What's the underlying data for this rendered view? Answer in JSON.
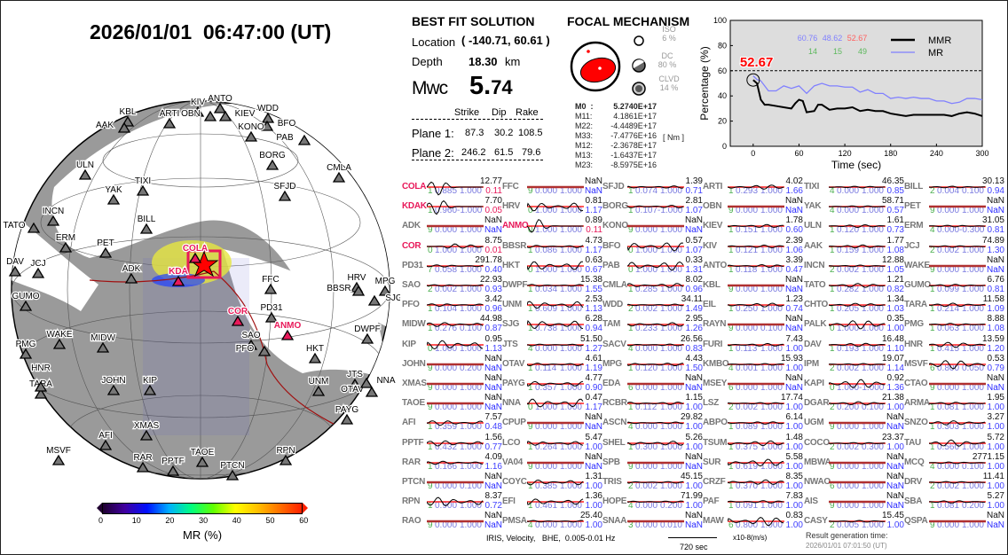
{
  "title": "2026/01/01  06:47:00 (UT)",
  "solution": {
    "heading": "BEST FIT SOLUTION",
    "location_label": "Location",
    "location": "( -140.71,  60.61 )",
    "depth_label": "Depth",
    "depth": "18.30",
    "depth_unit": "km",
    "mag_label": "Mwc",
    "mag_int": "5.",
    "mag_dec": "74",
    "cols": [
      "Strike",
      "Dip",
      "Rake"
    ],
    "planes": [
      {
        "label": "Plane 1:",
        "strike": "87.3",
        "dip": "30.2",
        "rake": "108.5"
      },
      {
        "label": "Plane 2:",
        "strike": "246.2",
        "dip": "61.5",
        "rake": "79.6"
      }
    ]
  },
  "focal": {
    "heading": "FOCAL MECHANISM",
    "iso_label": "ISO",
    "iso": "6  %",
    "dc_label": "DC",
    "dc": "80 %",
    "clvd_label": "CLVD",
    "clvd": "14 %",
    "unit": "[ Nm ]",
    "tensor": [
      {
        "k": "M0  :",
        "v": "5.2740E+17"
      },
      {
        "k": "M11:",
        "v": "4.1861E+17"
      },
      {
        "k": "M22:",
        "v": "-4.4489E+17"
      },
      {
        "k": "M33:",
        "v": "-7.4776E+16"
      },
      {
        "k": "M12:",
        "v": "-2.3678E+17"
      },
      {
        "k": "M13:",
        "v": "-1.6437E+17"
      },
      {
        "k": "M23:",
        "v": "-8.5975E+16"
      }
    ]
  },
  "chart_data": {
    "type": "line",
    "xlabel": "Time (sec)",
    "ylabel": "Percentage (%)",
    "xlim": [
      -30,
      300
    ],
    "ylim": [
      0,
      100
    ],
    "xticks": [
      0,
      60,
      120,
      180,
      240,
      300
    ],
    "yticks": [
      0,
      20,
      40,
      60,
      80,
      100
    ],
    "hline": 60,
    "legend": "top-right",
    "highlight": "52.67",
    "stats_top": [
      "60.76",
      "48.62",
      "52.67"
    ],
    "stats_bottom": [
      "14",
      "15",
      "49"
    ],
    "series": [
      {
        "name": "MMR",
        "color": "#000000",
        "x": [
          0,
          5,
          10,
          15,
          20,
          30,
          40,
          50,
          55,
          60,
          65,
          70,
          80,
          85,
          90,
          100,
          110,
          120,
          130,
          140,
          150,
          160,
          170,
          180,
          190,
          200,
          210,
          220,
          230,
          240,
          250,
          260,
          270,
          280,
          290,
          300
        ],
        "y": [
          52.67,
          50,
          37,
          33,
          33,
          32,
          31,
          30,
          34,
          37,
          36,
          27,
          28,
          33,
          33,
          29,
          30,
          30,
          31,
          28,
          29,
          28,
          28,
          26,
          25,
          24,
          25,
          25,
          25,
          25,
          25,
          24,
          26,
          27,
          26,
          24
        ]
      },
      {
        "name": "MR",
        "color": "#8080ff",
        "x": [
          0,
          5,
          10,
          20,
          30,
          40,
          50,
          60,
          70,
          80,
          90,
          100,
          110,
          120,
          130,
          140,
          150,
          160,
          170,
          180,
          190,
          200,
          210,
          220,
          230,
          240,
          250,
          260,
          270,
          280,
          290,
          300
        ],
        "y": [
          56,
          53,
          52,
          44,
          44,
          48,
          46,
          48,
          42,
          48,
          50,
          48,
          48,
          47,
          47,
          43,
          45,
          42,
          42,
          38,
          39,
          38,
          39,
          38,
          38,
          36,
          36,
          34,
          35,
          38,
          38,
          37
        ]
      }
    ]
  },
  "map": {
    "colorbar_label": "MR (%)",
    "colorbar_ticks": [
      "0",
      "10",
      "20",
      "30",
      "40",
      "50",
      "60"
    ],
    "stations": [
      {
        "name": "KIV"
      },
      {
        "name": "ANTO"
      },
      {
        "name": "OBN"
      },
      {
        "name": "KIEV"
      },
      {
        "name": "WDD"
      },
      {
        "name": "BFO"
      },
      {
        "name": "KONO"
      },
      {
        "name": "KBL"
      },
      {
        "name": "AAK"
      },
      {
        "name": "ARTI"
      },
      {
        "name": "PAB"
      },
      {
        "name": "BORG"
      },
      {
        "name": "ULN"
      },
      {
        "name": "CMLA"
      },
      {
        "name": "TIXI"
      },
      {
        "name": "YAK"
      },
      {
        "name": "SFJD"
      },
      {
        "name": "INCN"
      },
      {
        "name": "TATO"
      },
      {
        "name": "BILL"
      },
      {
        "name": "ERM"
      },
      {
        "name": "PET"
      },
      {
        "name": "DAV"
      },
      {
        "name": "JCJ"
      },
      {
        "name": "ADK"
      },
      {
        "name": "FFC"
      },
      {
        "name": "HRV"
      },
      {
        "name": "BBSR"
      },
      {
        "name": "GUMO"
      },
      {
        "name": "MPG"
      },
      {
        "name": "SJG"
      },
      {
        "name": "PD31"
      },
      {
        "name": "COR",
        "hl": true
      },
      {
        "name": "SAO"
      },
      {
        "name": "PFO"
      },
      {
        "name": "ANMO",
        "hl": true
      },
      {
        "name": "DWPF"
      },
      {
        "name": "PMG"
      },
      {
        "name": "WAKE"
      },
      {
        "name": "MIDW"
      },
      {
        "name": "HKT"
      },
      {
        "name": "TARA"
      },
      {
        "name": "HNR"
      },
      {
        "name": "JOHN"
      },
      {
        "name": "KIP"
      },
      {
        "name": "UNM"
      },
      {
        "name": "JTS"
      },
      {
        "name": "OTAV"
      },
      {
        "name": "NNA"
      },
      {
        "name": "PAYG"
      },
      {
        "name": "XMAS"
      },
      {
        "name": "MSVF"
      },
      {
        "name": "AFI"
      },
      {
        "name": "RAR"
      },
      {
        "name": "PPTF"
      },
      {
        "name": "TAOE"
      },
      {
        "name": "PTCN"
      },
      {
        "name": "RPN"
      },
      {
        "name": "COLA",
        "hl": true
      },
      {
        "name": "KDA",
        "hl": true
      }
    ]
  },
  "footer": {
    "info": "IRIS, Velocity,   BHE,  0.005-0.01 Hz",
    "scale": "720 sec",
    "units": "x10-8(m/s)",
    "gen_label": "Result generation time:",
    "gen_time": "2026/01/01 07:01:50 (UT)"
  },
  "colors": {
    "highlight": "#e8195a",
    "blue": "#4040ff",
    "green": "#4caf50"
  },
  "stations": [
    [
      [
        "COLA",
        "12.77",
        "1",
        "0.885",
        "1.000",
        "0.11",
        true
      ],
      [
        "KDAK",
        "7.70",
        "1",
        "0.960",
        "-1.000",
        "0.05",
        true
      ],
      [
        "ADK",
        "NaN",
        "9",
        "0.000",
        "1.000",
        "NaN"
      ],
      [
        "COR",
        "8.75",
        "0",
        "1.000",
        "1.000",
        "0.01",
        true
      ],
      [
        "PD31",
        "291.78",
        "7",
        "0.058",
        "1.000",
        "0.40"
      ],
      [
        "SAO",
        "22.93",
        "2",
        "0.002",
        "1.000",
        "0.93"
      ],
      [
        "PFO",
        "3.42",
        "1",
        "0.104",
        "1.000",
        "0.96"
      ],
      [
        "MIDW",
        "44.98",
        "1",
        "0.276",
        "0.100",
        "0.87"
      ],
      [
        "KIP",
        "0.95",
        "0",
        "1.000",
        "1.000",
        "1.13"
      ],
      [
        "JOHN",
        "NaN",
        "9",
        "0.000",
        "0.200",
        "NaN"
      ],
      [
        "XMAS",
        "NaN",
        "9",
        "0.000",
        "1.000",
        "NaN"
      ],
      [
        "TAOE",
        "NaN",
        "9",
        "0.000",
        "1.000",
        "NaN"
      ],
      [
        "AFI",
        "7.57",
        "1",
        "0.359",
        "1.000",
        "0.48"
      ],
      [
        "PPTF",
        "1.56",
        "1",
        "0.432",
        "1.000",
        "0.77"
      ],
      [
        "RAR",
        "4.09",
        "1",
        "0.166",
        "1.000",
        "1.16"
      ],
      [
        "PTCN",
        "NaN",
        "9",
        "0.000",
        "0.100",
        "NaN"
      ],
      [
        "RPN",
        "8.37",
        "1",
        "0.900",
        "1.000",
        "0.72"
      ],
      [
        "RAO",
        "NaN",
        "9",
        "0.000",
        "1.000",
        "NaN"
      ]
    ],
    [
      [
        "FFC",
        "NaN",
        "9",
        "0.000",
        "1.000",
        "NaN"
      ],
      [
        "HRV",
        "0.81",
        "0",
        "1.000",
        "1.000",
        "1.17"
      ],
      [
        "ANMO",
        "0.89",
        "0",
        "1.000",
        "1.000",
        "0.11",
        true
      ],
      [
        "BBSR",
        "4.73",
        "1",
        "0.086",
        "1.000",
        "1.17"
      ],
      [
        "HKT",
        "0.63",
        "0",
        "1.000",
        "1.000",
        "0.67"
      ],
      [
        "DWPF",
        "15.38",
        "1",
        "0.034",
        "1.000",
        "1.55"
      ],
      [
        "UNM",
        "2.53",
        "1",
        "0.609",
        "1.000",
        "1.13"
      ],
      [
        "SJG",
        "6.28",
        "1",
        "0.738",
        "1.000",
        "0.94"
      ],
      [
        "JTS",
        "51.50",
        "4",
        "0.000",
        "1.000",
        "1.27"
      ],
      [
        "OTAV",
        "4.61",
        "1",
        "0.114",
        "1.000",
        "1.19"
      ],
      [
        "PAYG",
        "4.77",
        "1",
        "0.357",
        "1.000",
        "0.90"
      ],
      [
        "NNA",
        "0.47",
        "0",
        "1.000",
        "1.000",
        "1.17"
      ],
      [
        "CPUP",
        "NaN",
        "9",
        "0.000",
        "1.000",
        "NaN"
      ],
      [
        "LCO",
        "5.47",
        "1",
        "0.264",
        "1.000",
        "1.00"
      ],
      [
        "VA04",
        "NaN",
        "9",
        "0.000",
        "1.000",
        "NaN"
      ],
      [
        "COYC",
        "1.31",
        "1",
        "0.385",
        "1.000",
        "1.00"
      ],
      [
        "EFI",
        "1.36",
        "1",
        "0.461",
        "1.000",
        "1.00"
      ],
      [
        "PMSA",
        "25.40",
        "4",
        "0.000",
        "1.000",
        "1.00"
      ]
    ],
    [
      [
        "SFJD",
        "1.39",
        "1",
        "0.074",
        "1.000",
        "0.71"
      ],
      [
        "BORG",
        "2.81",
        "1",
        "0.107",
        "-1.000",
        "1.07"
      ],
      [
        "KONO",
        "NaN",
        "9",
        "0.000",
        "1.000",
        "NaN"
      ],
      [
        "BFO",
        "0.57",
        "0",
        "1.000",
        "1.000",
        "1.07"
      ],
      [
        "PAB",
        "0.33",
        "0",
        "1.000",
        "1.000",
        "1.31"
      ],
      [
        "CMLA",
        "8.02",
        "1",
        "0.285",
        "1.000",
        "0.96"
      ],
      [
        "WDD",
        "34.11",
        "2",
        "0.002",
        "1.000",
        "1.49"
      ],
      [
        "TAM",
        "2.95",
        "1",
        "0.233",
        "1.000",
        "1.26"
      ],
      [
        "SACV",
        "26.56",
        "4",
        "0.000",
        "1.000",
        "0.83"
      ],
      [
        "MPG",
        "4.43",
        "1",
        "0.120",
        "1.000",
        "1.50"
      ],
      [
        "EDA",
        "NaN",
        "6",
        "0.000",
        "1.000",
        "NaN"
      ],
      [
        "RCBR",
        "1.15",
        "1",
        "0.112",
        "1.000",
        "1.00"
      ],
      [
        "ASCN",
        "29.82",
        "4",
        "0.000",
        "1.000",
        "1.00"
      ],
      [
        "SHEL",
        "5.26",
        "1",
        "0.300",
        "1.000",
        "1.00"
      ],
      [
        "SPB",
        "NaN",
        "9",
        "0.000",
        "1.000",
        "NaN"
      ],
      [
        "TRIS",
        "45.15",
        "2",
        "0.002",
        "1.000",
        "1.00"
      ],
      [
        "HOPE",
        "71.99",
        "4",
        "0.000",
        "0.200",
        "1.00"
      ],
      [
        "SNAA",
        "NaN",
        "3",
        "0.000",
        "0.010",
        "NaN"
      ]
    ],
    [
      [
        "ARTI",
        "4.02",
        "1",
        "0.293",
        "1.000",
        "1.66"
      ],
      [
        "OBN",
        "NaN",
        "9",
        "0.000",
        "1.000",
        "NaN"
      ],
      [
        "KIEV",
        "1.78",
        "1",
        "0.151",
        "1.000",
        "0.60"
      ],
      [
        "KIV",
        "2.39",
        "1",
        "0.121",
        "1.000",
        "1.06"
      ],
      [
        "ANTO",
        "3.39",
        "1",
        "0.118",
        "1.000",
        "0.47"
      ],
      [
        "KBL",
        "NaN",
        "9",
        "0.000",
        "1.000",
        "NaN"
      ],
      [
        "EIL",
        "1.23",
        "1",
        "0.250",
        "1.000",
        "0.74"
      ],
      [
        "RAYN",
        "NaN",
        "9",
        "0.000",
        "0.100",
        "NaN"
      ],
      [
        "FURI",
        "7.43",
        "1",
        "0.113",
        "1.000",
        "1.00"
      ],
      [
        "KMBO",
        "15.93",
        "4",
        "0.001",
        "1.000",
        "1.00"
      ],
      [
        "MSEY",
        "NaN",
        "6",
        "0.000",
        "1.000",
        "NaN"
      ],
      [
        "LSZ",
        "17.74",
        "2",
        "0.002",
        "1.000",
        "1.00"
      ],
      [
        "ABPO",
        "6.14",
        "1",
        "0.089",
        "1.000",
        "1.00"
      ],
      [
        "TSUM",
        "1.48",
        "1",
        "0.375",
        "1.000",
        "1.00"
      ],
      [
        "SUR",
        "5.58",
        "1",
        "0.619",
        "1.000",
        "1.00"
      ],
      [
        "CRZF",
        "8.35",
        "1",
        "0.370",
        "1.000",
        "1.00"
      ],
      [
        "PAF",
        "7.83",
        "1",
        "0.091",
        "1.000",
        "1.00"
      ],
      [
        "MAW",
        "0.83",
        "6",
        "0.800",
        "1.000",
        "1.00"
      ]
    ],
    [
      [
        "TIXI",
        "46.35",
        "4",
        "0.000",
        "1.000",
        "0.85"
      ],
      [
        "YAK",
        "58.71",
        "4",
        "0.000",
        "1.000",
        "0.57"
      ],
      [
        "ULN",
        "1.61",
        "1",
        "0.120",
        "1.000",
        "0.73"
      ],
      [
        "AAK",
        "1.77",
        "1",
        "0.159",
        "1.000",
        "1.08"
      ],
      [
        "INCN",
        "12.88",
        "2",
        "0.002",
        "1.000",
        "1.05"
      ],
      [
        "TATO",
        "1.21",
        "1",
        "0.282",
        "1.000",
        "0.82"
      ],
      [
        "CHTO",
        "1.34",
        "1",
        "0.205",
        "1.000",
        "1.03"
      ],
      [
        "PALK",
        "0.35",
        "0",
        "1.000",
        "1.000",
        "1.00"
      ],
      [
        "DAV",
        "16.48",
        "1",
        "0.193",
        "1.000",
        "1.10"
      ],
      [
        "IPM",
        "19.07",
        "2",
        "0.002",
        "1.000",
        "1.14"
      ],
      [
        "KAPI",
        "0.92",
        "0",
        "1.000",
        "-1.000",
        "1.36"
      ],
      [
        "DGAR",
        "21.38",
        "2",
        "0.200",
        "0.100",
        "1.00"
      ],
      [
        "UGM",
        "NaN",
        "9",
        "0.000",
        "1.000",
        "NaN"
      ],
      [
        "COCO",
        "23.37",
        "2",
        "0.002",
        "0.300",
        "1.00"
      ],
      [
        "MBWA",
        "NaN",
        "9",
        "0.000",
        "1.000",
        "NaN"
      ],
      [
        "NWAO",
        "NaN",
        "6",
        "0.000",
        "1.000",
        "NaN"
      ],
      [
        "AIS",
        "NaN",
        "9",
        "0.000",
        "1.000",
        "NaN"
      ],
      [
        "CASY",
        "15.45",
        "2",
        "0.005",
        "1.000",
        "1.00"
      ]
    ],
    [
      [
        "BILL",
        "30.13",
        "2",
        "0.004",
        "0.100",
        "0.94"
      ],
      [
        "PET",
        "NaN",
        "9",
        "0.000",
        "1.000",
        "NaN"
      ],
      [
        "ERM",
        "31.05",
        "4",
        "0.000",
        "-0.300",
        "0.81"
      ],
      [
        "JCJ",
        "74.89",
        "2",
        "0.002",
        "1.000",
        "1.30"
      ],
      [
        "WAKE",
        "NaN",
        "9",
        "0.000",
        "1.000",
        "NaN"
      ],
      [
        "GUMO",
        "6.76",
        "1",
        "0.099",
        "1.000",
        "0.81"
      ],
      [
        "TARA",
        "11.58",
        "1",
        "0.214",
        "1.000",
        "1.09"
      ],
      [
        "PMG",
        "8.88",
        "1",
        "0.063",
        "1.000",
        "1.08"
      ],
      [
        "HNR",
        "13.59",
        "1",
        "0.415",
        "1.000",
        "1.20"
      ],
      [
        "MSVF",
        "0.53",
        "6",
        "0.800",
        "0.050",
        "0.79"
      ],
      [
        "CTAO",
        "NaN",
        "9",
        "0.000",
        "1.000",
        "NaN"
      ],
      [
        "ARMA",
        "1.95",
        "1",
        "0.081",
        "1.000",
        "1.00"
      ],
      [
        "SNZO",
        "3.27",
        "1",
        "0.303",
        "1.000",
        "1.00"
      ],
      [
        "TAU",
        "5.72",
        "1",
        "0.560",
        "1.000",
        "1.00"
      ],
      [
        "MCQ",
        "2771.15",
        "4",
        "0.000",
        "0.100",
        "1.00"
      ],
      [
        "DRV",
        "11.41",
        "2",
        "0.002",
        "1.000",
        "1.00"
      ],
      [
        "SBA",
        "5.27",
        "1",
        "0.081",
        "0.200",
        "1.00"
      ],
      [
        "QSPA",
        "NaN",
        "9",
        "0.000",
        "1.000",
        "NaN"
      ]
    ]
  ]
}
